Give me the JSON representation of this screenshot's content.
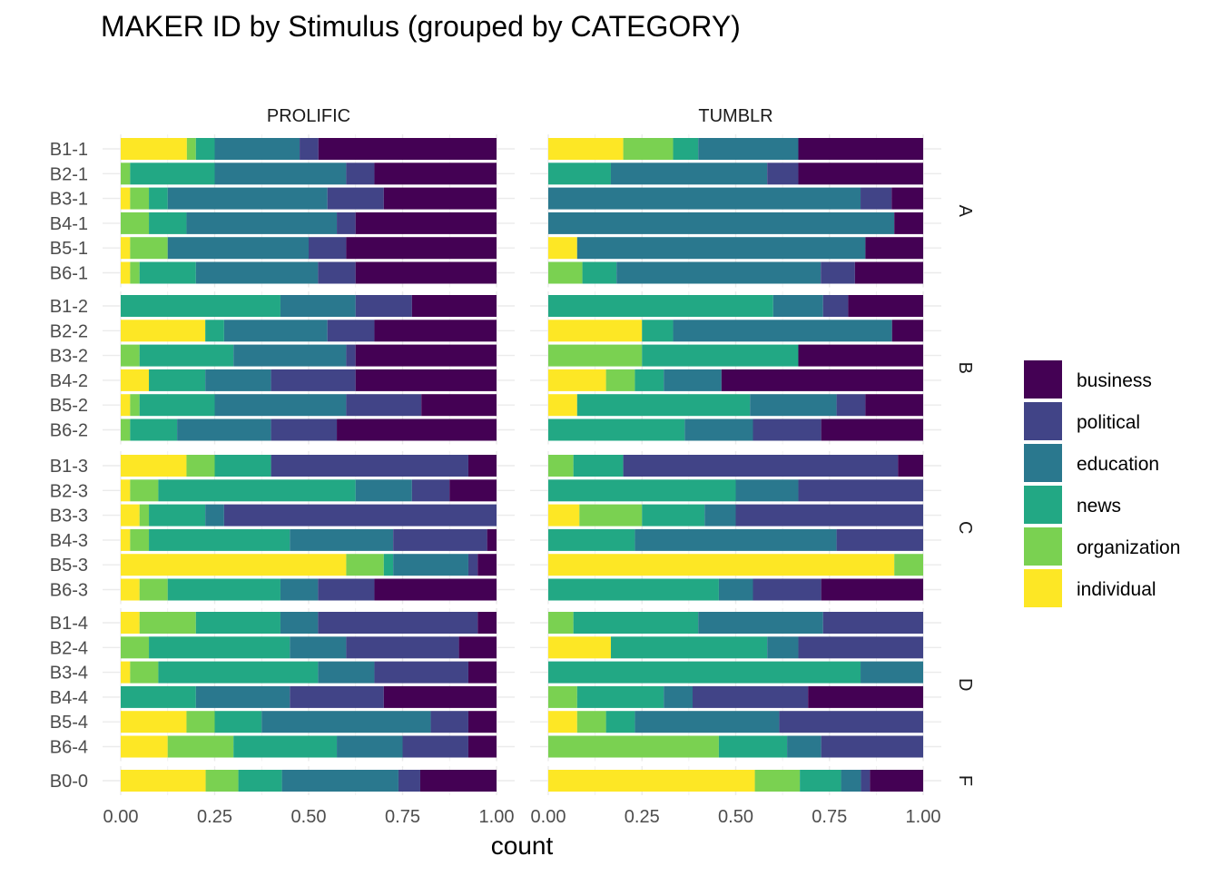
{
  "chart_data": {
    "type": "bar",
    "orientation": "horizontal",
    "stacked": true,
    "title": "MAKER ID by Stimulus (grouped by CATEGORY)",
    "xlabel": "count",
    "ylabel": "",
    "xlim": [
      0,
      1
    ],
    "x_ticks": [
      "0.00",
      "0.25",
      "0.50",
      "0.75",
      "1.00"
    ],
    "grid": true,
    "legend_position": "right",
    "columns": [
      "PROLIFIC",
      "TUMBLR"
    ],
    "series": [
      {
        "name": "individual",
        "color": "#FDE725"
      },
      {
        "name": "organization",
        "color": "#7AD151"
      },
      {
        "name": "news",
        "color": "#22A884"
      },
      {
        "name": "education",
        "color": "#2A788E"
      },
      {
        "name": "political",
        "color": "#414487"
      },
      {
        "name": "business",
        "color": "#440154"
      }
    ],
    "legend_order": [
      "business",
      "political",
      "education",
      "news",
      "organization",
      "individual"
    ],
    "groups": [
      {
        "label": "A",
        "rows": [
          {
            "label": "B1-1",
            "PROLIFIC": [
              0.176,
              0.024,
              0.05,
              0.226,
              0.05,
              0.474
            ],
            "TUMBLR": [
              0.2,
              0.133,
              0.067,
              0.267,
              0.0,
              0.333
            ]
          },
          {
            "label": "B2-1",
            "PROLIFIC": [
              0.0,
              0.025,
              0.225,
              0.35,
              0.075,
              0.325
            ],
            "TUMBLR": [
              0.0,
              0.0,
              0.167,
              0.417,
              0.083,
              0.333
            ]
          },
          {
            "label": "B3-1",
            "PROLIFIC": [
              0.025,
              0.05,
              0.05,
              0.425,
              0.15,
              0.3
            ],
            "TUMBLR": [
              0.0,
              0.0,
              0.0,
              0.833,
              0.083,
              0.084
            ]
          },
          {
            "label": "B4-1",
            "PROLIFIC": [
              0.0,
              0.075,
              0.1,
              0.4,
              0.05,
              0.375
            ],
            "TUMBLR": [
              0.0,
              0.0,
              0.0,
              0.923,
              0.0,
              0.077
            ]
          },
          {
            "label": "B5-1",
            "PROLIFIC": [
              0.025,
              0.1,
              0.0,
              0.375,
              0.1,
              0.4
            ],
            "TUMBLR": [
              0.077,
              0.0,
              0.0,
              0.769,
              0.0,
              0.154
            ]
          },
          {
            "label": "B6-1",
            "PROLIFIC": [
              0.025,
              0.025,
              0.15,
              0.325,
              0.1,
              0.375
            ],
            "TUMBLR": [
              0.0,
              0.091,
              0.091,
              0.545,
              0.091,
              0.182
            ]
          }
        ]
      },
      {
        "label": "B",
        "rows": [
          {
            "label": "B1-2",
            "PROLIFIC": [
              0.0,
              0.0,
              0.425,
              0.2,
              0.15,
              0.225
            ],
            "TUMBLR": [
              0.0,
              0.0,
              0.6,
              0.133,
              0.067,
              0.2
            ]
          },
          {
            "label": "B2-2",
            "PROLIFIC": [
              0.225,
              0.0,
              0.05,
              0.275,
              0.125,
              0.325
            ],
            "TUMBLR": [
              0.25,
              0.0,
              0.083,
              0.584,
              0.0,
              0.083
            ]
          },
          {
            "label": "B3-2",
            "PROLIFIC": [
              0.0,
              0.05,
              0.25,
              0.3,
              0.025,
              0.375
            ],
            "TUMBLR": [
              0.0,
              0.25,
              0.417,
              0.0,
              0.0,
              0.333
            ]
          },
          {
            "label": "B4-2",
            "PROLIFIC": [
              0.075,
              0.0,
              0.15,
              0.175,
              0.225,
              0.375
            ],
            "TUMBLR": [
              0.154,
              0.077,
              0.077,
              0.154,
              0.0,
              0.538
            ]
          },
          {
            "label": "B5-2",
            "PROLIFIC": [
              0.025,
              0.025,
              0.2,
              0.35,
              0.2,
              0.2
            ],
            "TUMBLR": [
              0.077,
              0.0,
              0.461,
              0.231,
              0.077,
              0.154
            ]
          },
          {
            "label": "B6-2",
            "PROLIFIC": [
              0.0,
              0.025,
              0.125,
              0.25,
              0.175,
              0.425
            ],
            "TUMBLR": [
              0.0,
              0.0,
              0.364,
              0.182,
              0.182,
              0.272
            ]
          }
        ]
      },
      {
        "label": "C",
        "rows": [
          {
            "label": "B1-3",
            "PROLIFIC": [
              0.175,
              0.075,
              0.15,
              0.0,
              0.525,
              0.075
            ],
            "TUMBLR": [
              0.0,
              0.067,
              0.133,
              0.0,
              0.733,
              0.067
            ]
          },
          {
            "label": "B2-3",
            "PROLIFIC": [
              0.025,
              0.075,
              0.525,
              0.15,
              0.1,
              0.125
            ],
            "TUMBLR": [
              0.0,
              0.0,
              0.5,
              0.167,
              0.333,
              0.0
            ]
          },
          {
            "label": "B3-3",
            "PROLIFIC": [
              0.05,
              0.025,
              0.15,
              0.05,
              0.725,
              0.0
            ],
            "TUMBLR": [
              0.083,
              0.167,
              0.167,
              0.083,
              0.5,
              0.0
            ]
          },
          {
            "label": "B4-3",
            "PROLIFIC": [
              0.025,
              0.05,
              0.375,
              0.275,
              0.25,
              0.025
            ],
            "TUMBLR": [
              0.0,
              0.0,
              0.231,
              0.538,
              0.231,
              0.0
            ]
          },
          {
            "label": "B5-3",
            "PROLIFIC": [
              0.6,
              0.1,
              0.025,
              0.2,
              0.025,
              0.05
            ],
            "TUMBLR": [
              0.923,
              0.077,
              0.0,
              0.0,
              0.0,
              0.0
            ]
          },
          {
            "label": "B6-3",
            "PROLIFIC": [
              0.05,
              0.075,
              0.3,
              0.1,
              0.15,
              0.325
            ],
            "TUMBLR": [
              0.0,
              0.0,
              0.455,
              0.091,
              0.182,
              0.272
            ]
          }
        ]
      },
      {
        "label": "D",
        "rows": [
          {
            "label": "B1-4",
            "PROLIFIC": [
              0.05,
              0.15,
              0.225,
              0.1,
              0.425,
              0.05
            ],
            "TUMBLR": [
              0.0,
              0.067,
              0.333,
              0.333,
              0.267,
              0.0
            ]
          },
          {
            "label": "B2-4",
            "PROLIFIC": [
              0.0,
              0.075,
              0.375,
              0.15,
              0.3,
              0.1
            ],
            "TUMBLR": [
              0.167,
              0.0,
              0.417,
              0.083,
              0.333,
              0.0
            ]
          },
          {
            "label": "B3-4",
            "PROLIFIC": [
              0.025,
              0.075,
              0.425,
              0.15,
              0.25,
              0.075
            ],
            "TUMBLR": [
              0.0,
              0.0,
              0.833,
              0.167,
              0.0,
              0.0
            ]
          },
          {
            "label": "B4-4",
            "PROLIFIC": [
              0.0,
              0.0,
              0.2,
              0.25,
              0.25,
              0.3
            ],
            "TUMBLR": [
              0.0,
              0.077,
              0.231,
              0.077,
              0.308,
              0.307
            ]
          },
          {
            "label": "B5-4",
            "PROLIFIC": [
              0.175,
              0.075,
              0.125,
              0.45,
              0.1,
              0.075
            ],
            "TUMBLR": [
              0.077,
              0.077,
              0.077,
              0.385,
              0.384,
              0.0
            ]
          },
          {
            "label": "B6-4",
            "PROLIFIC": [
              0.125,
              0.175,
              0.275,
              0.175,
              0.175,
              0.075
            ],
            "TUMBLR": [
              0.0,
              0.455,
              0.182,
              0.091,
              0.272,
              0.0
            ]
          }
        ]
      },
      {
        "label": "F",
        "rows": [
          {
            "label": "B0-0",
            "PROLIFIC": [
              0.226,
              0.087,
              0.116,
              0.31,
              0.058,
              0.203
            ],
            "TUMBLR": [
              0.551,
              0.12,
              0.11,
              0.053,
              0.024,
              0.142
            ]
          }
        ]
      }
    ]
  }
}
